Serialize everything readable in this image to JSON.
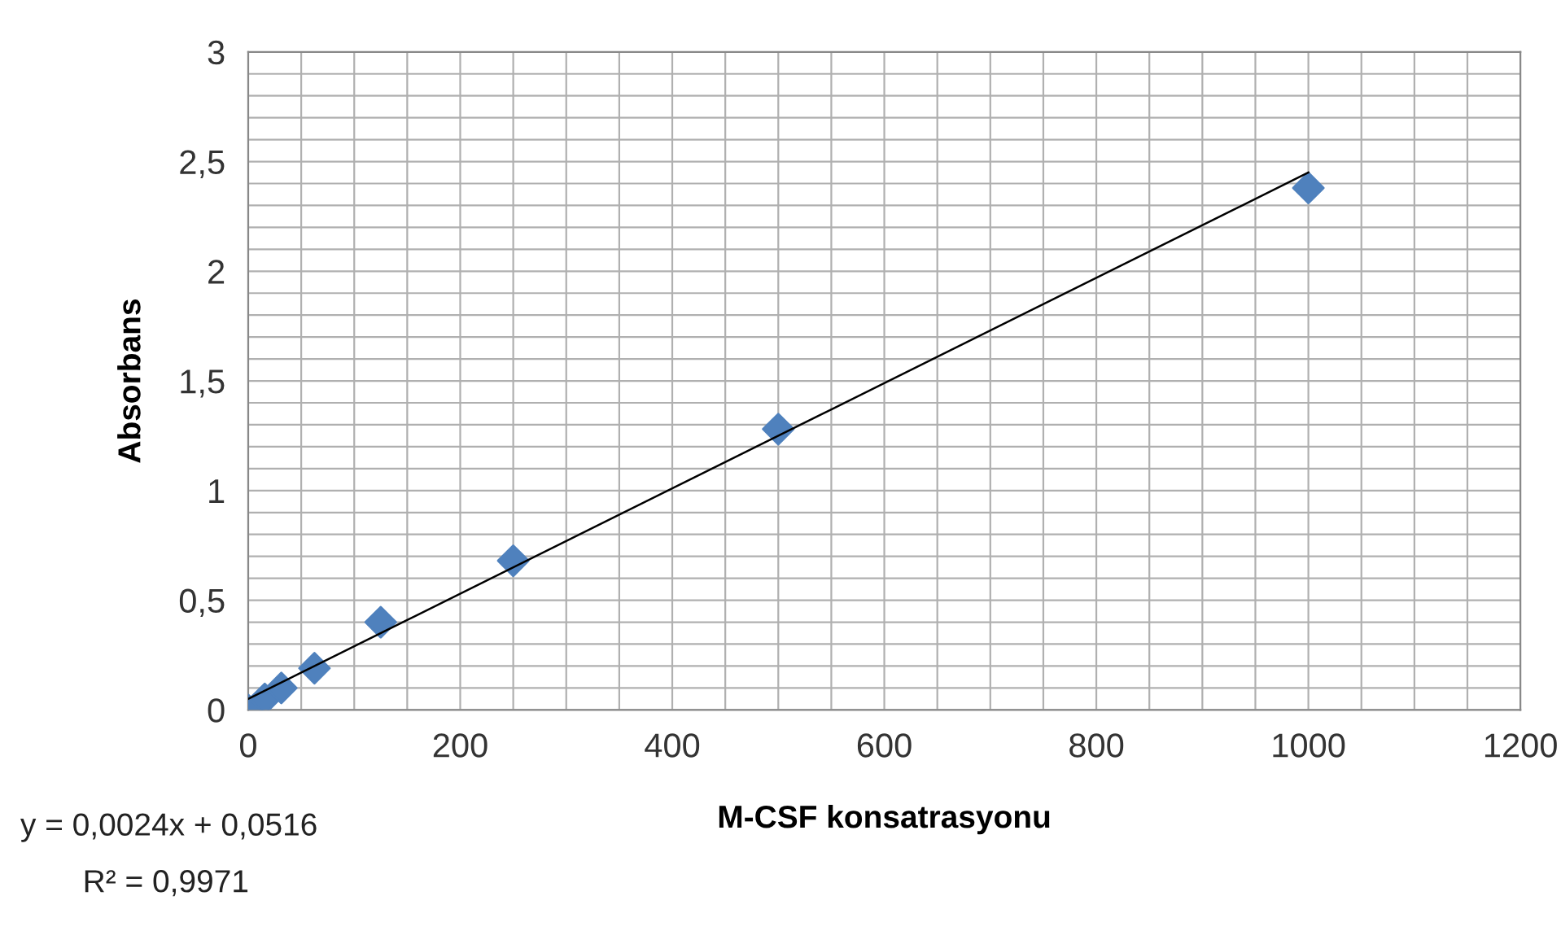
{
  "chart_data": {
    "type": "scatter",
    "xlabel": "M-CSF konsatrasyonu",
    "ylabel": "Absorbans",
    "series": [
      {
        "color": "#4f81bd",
        "marker": "diamond",
        "x": [
          0,
          15.6,
          31.25,
          62.5,
          125,
          250,
          500,
          1000
        ],
        "values": [
          0,
          0.05,
          0.1,
          0.19,
          0.4,
          0.68,
          1.28,
          2.38
        ]
      },
      {
        "type": "line",
        "color": "#000000",
        "marker": "none",
        "line_style": "solid",
        "x": [
          0,
          1000
        ],
        "values": [
          0.05,
          2.45
        ]
      }
    ],
    "xlim": [
      0,
      1200
    ],
    "ylim": [
      0,
      3
    ],
    "xticks": [
      0,
      {
        "value": 50,
        "label": null
      },
      {
        "value": 100,
        "label": null
      },
      {
        "value": 150,
        "label": null
      },
      200,
      {
        "value": 250,
        "label": null
      },
      {
        "value": 300,
        "label": null
      },
      {
        "value": 350,
        "label": null
      },
      400,
      {
        "value": 450,
        "label": null
      },
      {
        "value": 500,
        "label": null
      },
      {
        "value": 550,
        "label": null
      },
      600,
      {
        "value": 650,
        "label": null
      },
      {
        "value": 700,
        "label": null
      },
      {
        "value": 750,
        "label": null
      },
      800,
      {
        "value": 850,
        "label": null
      },
      {
        "value": 900,
        "label": null
      },
      {
        "value": 950,
        "label": null
      },
      1000,
      {
        "value": 1050,
        "label": null
      },
      {
        "value": 1100,
        "label": null
      },
      {
        "value": 1150,
        "label": null
      },
      1200
    ],
    "yticks": [
      0,
      {
        "value": 0.1,
        "label": null
      },
      {
        "value": 0.2,
        "label": null
      },
      {
        "value": 0.3,
        "label": null
      },
      {
        "value": 0.4,
        "label": null
      },
      {
        "value": 0.5,
        "label": "0,5"
      },
      {
        "value": 0.6,
        "label": null
      },
      {
        "value": 0.7,
        "label": null
      },
      {
        "value": 0.8,
        "label": null
      },
      {
        "value": 0.9,
        "label": null
      },
      1,
      {
        "value": 1.1,
        "label": null
      },
      {
        "value": 1.2,
        "label": null
      },
      {
        "value": 1.3,
        "label": null
      },
      {
        "value": 1.4,
        "label": null
      },
      {
        "value": 1.5,
        "label": "1,5"
      },
      {
        "value": 1.6,
        "label": null
      },
      {
        "value": 1.7,
        "label": null
      },
      {
        "value": 1.8,
        "label": null
      },
      {
        "value": 1.9,
        "label": null
      },
      2,
      {
        "value": 2.1,
        "label": null
      },
      {
        "value": 2.2,
        "label": null
      },
      {
        "value": 2.3,
        "label": null
      },
      {
        "value": 2.4,
        "label": null
      },
      {
        "value": 2.5,
        "label": "2,5"
      },
      {
        "value": 2.6,
        "label": null
      },
      {
        "value": 2.7,
        "label": null
      },
      {
        "value": 2.8,
        "label": null
      },
      {
        "value": 2.9,
        "label": null
      },
      3
    ],
    "grid": true,
    "legend": false,
    "annotations": [
      "y = 0,0024x + 0,0516",
      "R² = 0,9971"
    ]
  }
}
